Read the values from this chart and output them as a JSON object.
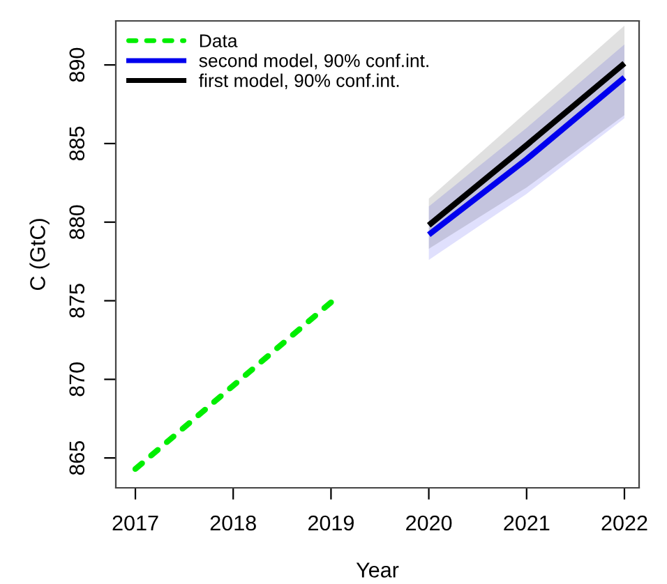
{
  "chart_data": {
    "type": "line",
    "xlabel": "Year",
    "ylabel": "C (GtC)",
    "xlim": [
      2016.8,
      2022.15
    ],
    "xticks": [
      2017,
      2018,
      2019,
      2020,
      2021,
      2022
    ],
    "ylim": [
      863.1,
      892.8
    ],
    "yticks": [
      865,
      870,
      875,
      880,
      885,
      890
    ],
    "grid": false,
    "legend": "top left",
    "series": [
      {
        "name": "Data",
        "color": "#00ee00",
        "line_style": "dotted",
        "x": [
          2017,
          2018,
          2019
        ],
        "values": [
          864.3,
          869.6,
          874.9
        ]
      },
      {
        "name": "second model, 90% conf.int.",
        "color": "#0000ee",
        "line_style": "solid",
        "x": [
          2020,
          2021,
          2022
        ],
        "values": [
          879.2,
          884.0,
          889.2
        ],
        "lower": [
          877.6,
          881.8,
          886.6
        ],
        "upper": [
          881.0,
          886.0,
          891.3
        ]
      },
      {
        "name": "first model, 90% conf.int.",
        "color": "#000000",
        "line_style": "solid",
        "x": [
          2020,
          2021,
          2022
        ],
        "values": [
          879.8,
          884.9,
          890.1
        ],
        "lower": [
          878.3,
          882.2,
          886.8
        ],
        "upper": [
          881.5,
          887.0,
          892.5
        ]
      }
    ]
  }
}
